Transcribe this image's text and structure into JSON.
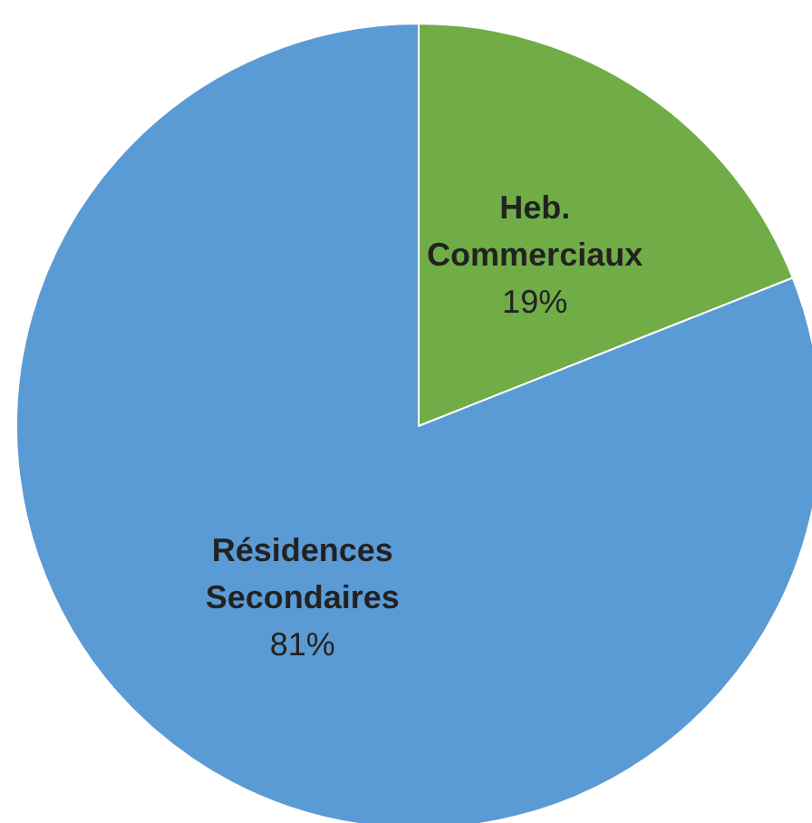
{
  "chart_data": {
    "type": "pie",
    "categories": [
      "Heb. Commerciaux",
      "Résidences Secondaires"
    ],
    "values": [
      19,
      81
    ],
    "value_labels": [
      "19%",
      "81%"
    ],
    "colors": [
      "#70ad47",
      "#5b9bd5"
    ],
    "legend": false
  }
}
